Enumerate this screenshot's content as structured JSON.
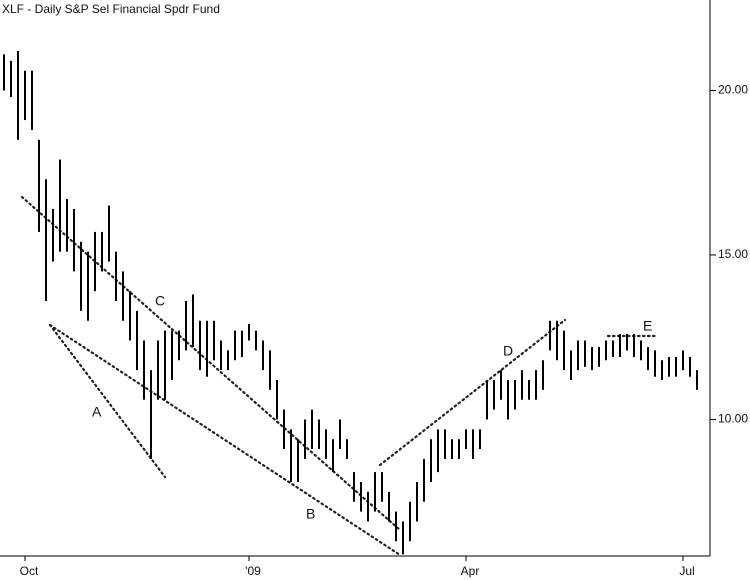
{
  "chart_data": {
    "type": "hilo",
    "title": "XLF - Daily  S&P Sel Financial Spdr Fund",
    "color": "#000000",
    "categories": [
      null,
      null,
      null,
      "Oct",
      null,
      null,
      null,
      null,
      null,
      null,
      null,
      null,
      null,
      null,
      null,
      null,
      null,
      null,
      null,
      null,
      null,
      null,
      null,
      null,
      null,
      null,
      null,
      null,
      null,
      null,
      null,
      null,
      null,
      null,
      null,
      "'09",
      null,
      null,
      null,
      null,
      null,
      null,
      null,
      null,
      null,
      null,
      null,
      null,
      null,
      null,
      null,
      null,
      null,
      null,
      null,
      null,
      null,
      null,
      null,
      null,
      null,
      null,
      null,
      null,
      null,
      null,
      "Apr",
      null,
      null,
      null,
      null,
      null,
      null,
      null,
      null,
      null,
      null,
      null,
      null,
      null,
      null,
      null,
      null,
      null,
      null,
      null,
      null,
      null,
      null,
      null,
      null,
      null,
      null,
      null,
      null,
      null,
      null,
      "Jul",
      null,
      null
    ],
    "high": [
      21.1,
      20.9,
      21.2,
      20.6,
      20.6,
      18.5,
      17.3,
      16.4,
      17.9,
      16.7,
      16.4,
      15.4,
      15.1,
      15.7,
      15.7,
      16.5,
      15.1,
      14.5,
      13.9,
      13.3,
      12.4,
      11.5,
      12.4,
      12.7,
      12.7,
      12.7,
      13.6,
      13.8,
      13.0,
      13.0,
      13.0,
      12.4,
      12.1,
      12.7,
      12.7,
      12.9,
      12.7,
      12.4,
      12.1,
      11.2,
      10.3,
      9.7,
      9.4,
      10.0,
      10.3,
      10.0,
      9.7,
      9.4,
      10.0,
      9.4,
      8.4,
      8.1,
      7.8,
      8.4,
      8.4,
      7.8,
      7.2,
      6.9,
      7.5,
      8.1,
      8.8,
      9.4,
      9.7,
      9.7,
      9.4,
      9.4,
      9.7,
      9.7,
      9.7,
      11.2,
      11.2,
      11.5,
      11.2,
      11.2,
      11.5,
      11.2,
      11.5,
      11.8,
      13.0,
      13.0,
      12.7,
      12.1,
      12.4,
      12.4,
      12.2,
      12.2,
      12.4,
      12.4,
      12.6,
      12.6,
      12.6,
      12.4,
      12.2,
      12.1,
      11.8,
      11.9,
      11.9,
      12.1,
      11.9,
      11.5
    ],
    "low": [
      20.0,
      19.8,
      18.5,
      19.1,
      18.8,
      15.7,
      13.6,
      14.8,
      15.1,
      15.1,
      14.5,
      13.3,
      13.0,
      13.9,
      14.5,
      14.8,
      13.6,
      13.0,
      12.4,
      11.5,
      10.6,
      8.8,
      10.6,
      10.6,
      11.2,
      11.8,
      12.1,
      12.2,
      11.5,
      11.3,
      11.8,
      11.5,
      11.5,
      11.8,
      11.9,
      12.4,
      12.1,
      11.5,
      10.9,
      10.0,
      9.1,
      8.1,
      8.1,
      8.8,
      9.1,
      9.1,
      8.8,
      8.4,
      9.1,
      8.8,
      7.5,
      7.2,
      6.9,
      7.2,
      7.5,
      6.9,
      6.3,
      5.9,
      6.3,
      6.9,
      7.5,
      8.1,
      8.4,
      8.8,
      8.8,
      8.8,
      9.1,
      8.8,
      9.1,
      10.0,
      10.3,
      10.6,
      10.0,
      10.3,
      10.6,
      10.6,
      10.6,
      10.9,
      12.1,
      11.8,
      11.5,
      11.2,
      11.5,
      11.6,
      11.5,
      11.6,
      11.8,
      11.9,
      11.9,
      12.1,
      11.9,
      11.8,
      11.5,
      11.3,
      11.2,
      11.3,
      11.3,
      11.5,
      11.3,
      10.9
    ],
    "ylim": [
      5.85,
      22.75
    ],
    "yticks": [
      {
        "value": 10,
        "label": "10.00"
      },
      {
        "value": 15,
        "label": "15.00"
      },
      {
        "value": 20,
        "label": "20.00"
      }
    ],
    "annotations": [
      "A",
      "B",
      "C",
      "D",
      "E"
    ]
  }
}
